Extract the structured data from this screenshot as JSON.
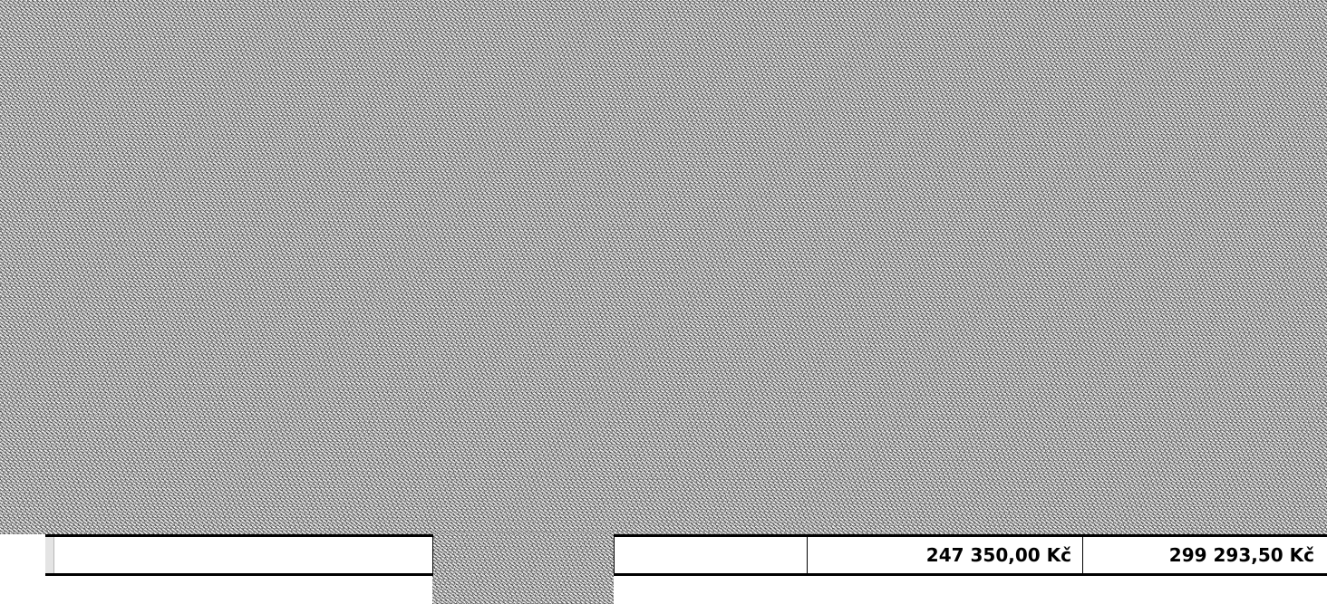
{
  "sheet": {
    "total_row": {
      "label_cell": "",
      "blank_cell": "",
      "net_total": "247 350,00 Kč",
      "gross_total": "299 293,50 Kč"
    }
  }
}
